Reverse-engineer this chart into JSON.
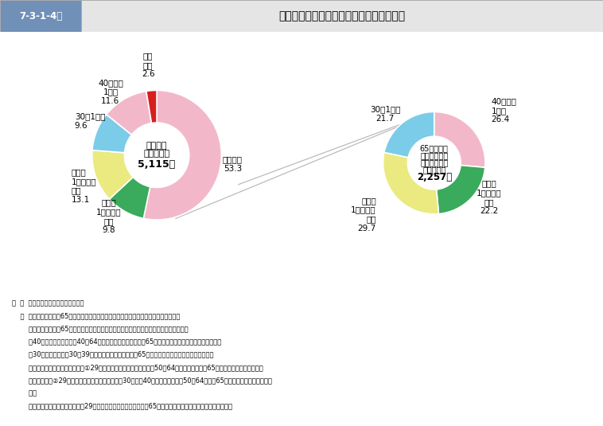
{
  "title_box_label": "7-3-1-4図",
  "title_main": "調査対象高齢犯罪者の犯歴時年齢別構成比",
  "left_pie": {
    "center_line1": "調査対象",
    "center_line2": "高齢犯罪者",
    "center_line3": "5,115人",
    "values": [
      53.3,
      9.8,
      13.1,
      9.6,
      11.6,
      2.6
    ],
    "colors": [
      "#f2b8ca",
      "#3aaa5c",
      "#eaea80",
      "#7acce8",
      "#f2b8ca",
      "#d62020"
    ],
    "startangle": 90,
    "labels": [
      "高齢初犯\n53.3",
      "若年時\n1犯目以後\n継続\n9.8",
      "若年時\n1犯目以後\n中断\n13.1",
      "30代1犯目\n9.6",
      "40代以後\n1犯目\n11.6",
      "高齢\n再犯\n2.6"
    ]
  },
  "right_pie": {
    "center_line1": "65歳未満に",
    "center_line2": "おける犯歴が",
    "center_line3": "ある調査対象",
    "center_line4": "高齢犯罪者",
    "center_line5": "2,257人",
    "values": [
      26.4,
      22.2,
      29.7,
      21.7
    ],
    "colors": [
      "#f2b8ca",
      "#3aaa5c",
      "#eaea80",
      "#7acce8"
    ],
    "startangle": 90,
    "labels": [
      "40代以後\n1犯目\n26.4",
      "若年時\n1犯目以後\n継続\n22.2",
      "若年時\n1犯目以後\n中断\n29.7",
      "30代1犯目\n21.7"
    ]
  },
  "notes": [
    "注  １  法務総合研究所の調査による。",
    "    ２  「高齢初犯」は，65歳以上に１犯目の犯歴があり，総犯歴数が１である者をいう。",
    "        「高齢再犯」は，65歳以上に１犯目の犯歴があり，総犯歴数が２以上である者をいう。",
    "        「40代以後１犯目」は，40～64歳に１犯目の犯歴があり，65歳以上における犯歴がある者をいう。",
    "        「30代１犯目」は，30～39歳に１犯目の犯歴があり，65歳以上における犯歴がある者をいう。",
    "        「若年時１犯目以後中断」は，①29歳までに１犯目の犯歴があり，50～64歳に犯歴がなく，65歳以上における犯歴がある",
    "        る者，又は，②29歳までに１犯目の犯歴があり，30代及び40代に犯歴がなく，50～64歳及び65歳以上に犯歴がある者をい",
    "        う。",
    "        「若年時１犯目以後継続」は，29歳までに１犯目の犯歴があり，65歳までほぼ継続的に犯歴がある者をいう。"
  ]
}
